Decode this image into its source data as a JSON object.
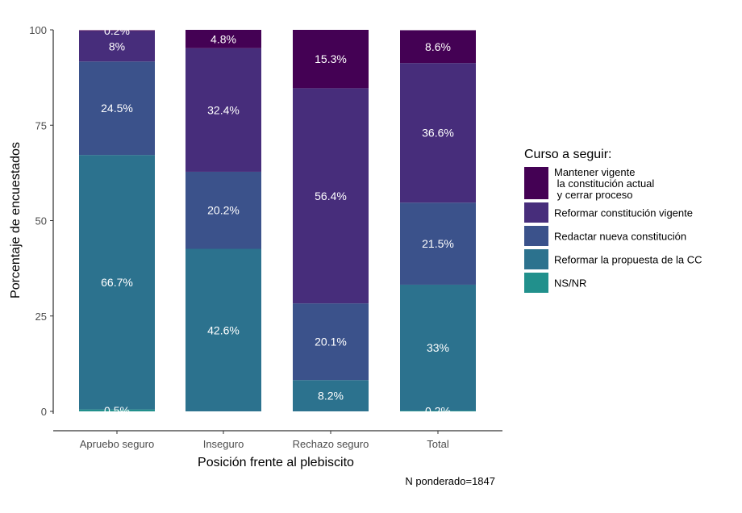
{
  "chart_data": {
    "type": "bar",
    "stacked": true,
    "title": "",
    "xlabel": "Posición frente al plebiscito",
    "ylabel": "Porcentaje de encuestados",
    "ylim": [
      0,
      100
    ],
    "yticks": [
      "0",
      "25",
      "50",
      "75",
      "100"
    ],
    "ytick_values": [
      0,
      25,
      50,
      75,
      100
    ],
    "categories": [
      "Apruebo seguro",
      "Inseguro",
      "Rechazo seguro",
      "Total"
    ],
    "legend_title": "Curso a seguir:",
    "legend_position": "right",
    "grid": false,
    "caption": "N ponderado=1847",
    "series": [
      {
        "name": "NS/NR",
        "color": "#21908c",
        "values": [
          0.5,
          0,
          0,
          0.2
        ],
        "labels": [
          "0.5%",
          "",
          "",
          "0.2%"
        ]
      },
      {
        "name": "Reformar la propuesta de la CC",
        "color": "#2c728e",
        "values": [
          66.7,
          42.6,
          8.2,
          33
        ],
        "labels": [
          "66.7%",
          "42.6%",
          "8.2%",
          "33%"
        ]
      },
      {
        "name": "Redactar nueva constitución",
        "color": "#3b528b",
        "values": [
          24.5,
          20.2,
          20.1,
          21.5
        ],
        "labels": [
          "24.5%",
          "20.2%",
          "20.1%",
          "21.5%"
        ]
      },
      {
        "name": "Reformar constitución vigente",
        "color": "#472d7b",
        "values": [
          8,
          32.4,
          56.4,
          36.6
        ],
        "labels": [
          "8%",
          "32.4%",
          "56.4%",
          "36.6%"
        ]
      },
      {
        "name": "Mantener vigente\n la constitución actual\n y cerrar proceso",
        "color": "#440154",
        "values": [
          0.2,
          4.8,
          15.3,
          8.6
        ],
        "labels": [
          "0.2%",
          "4.8%",
          "15.3%",
          "8.6%"
        ]
      }
    ],
    "legend_order": [
      4,
      3,
      2,
      1,
      0
    ]
  }
}
